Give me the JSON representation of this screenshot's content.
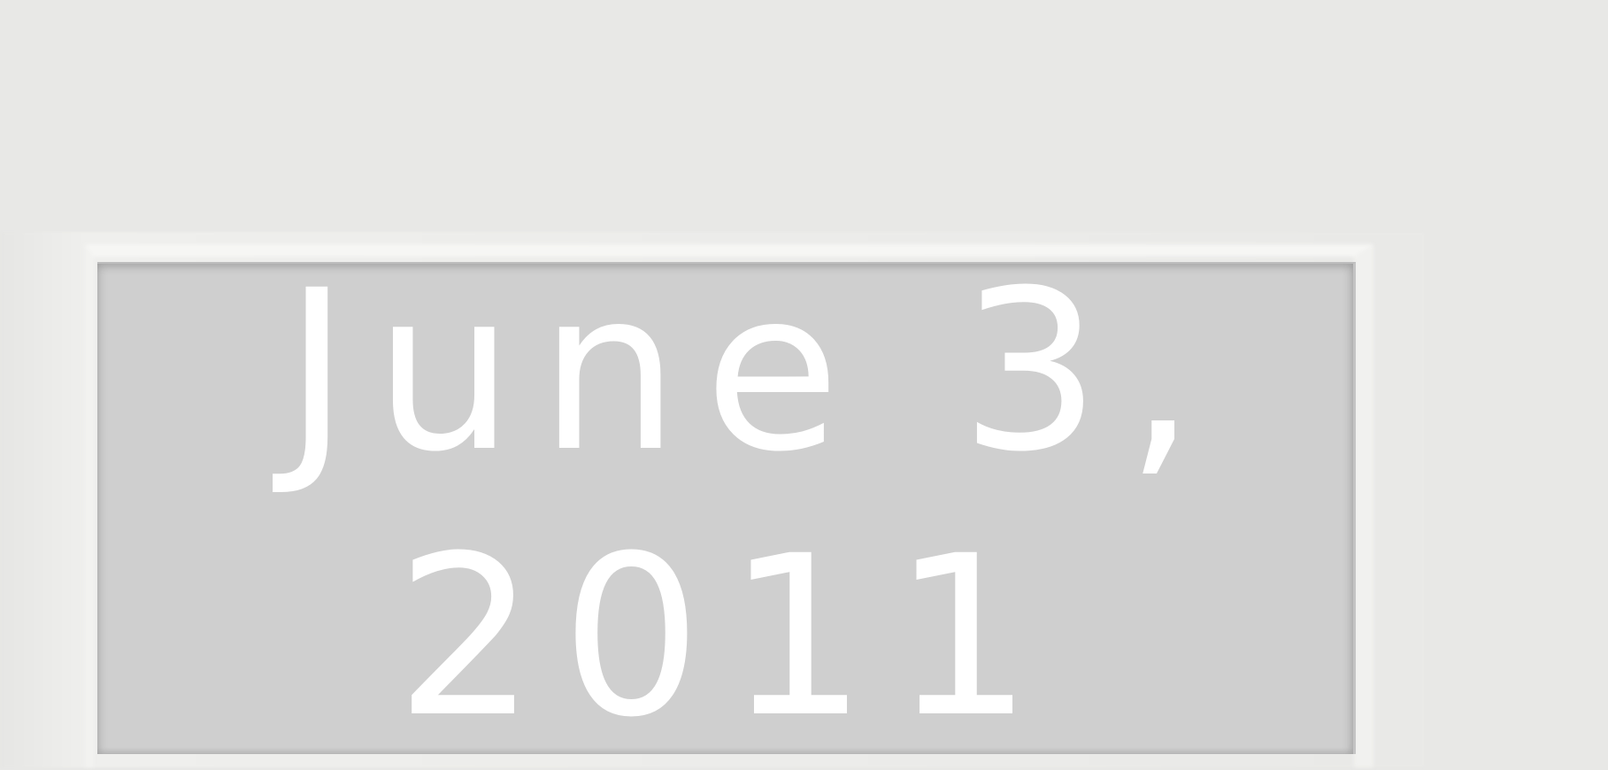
{
  "date": {
    "line1": "June 3,",
    "line2": "2011"
  },
  "colors": {
    "background": "#e8e8e6",
    "panel": "#cfcfcf",
    "text": "#ffffff"
  }
}
